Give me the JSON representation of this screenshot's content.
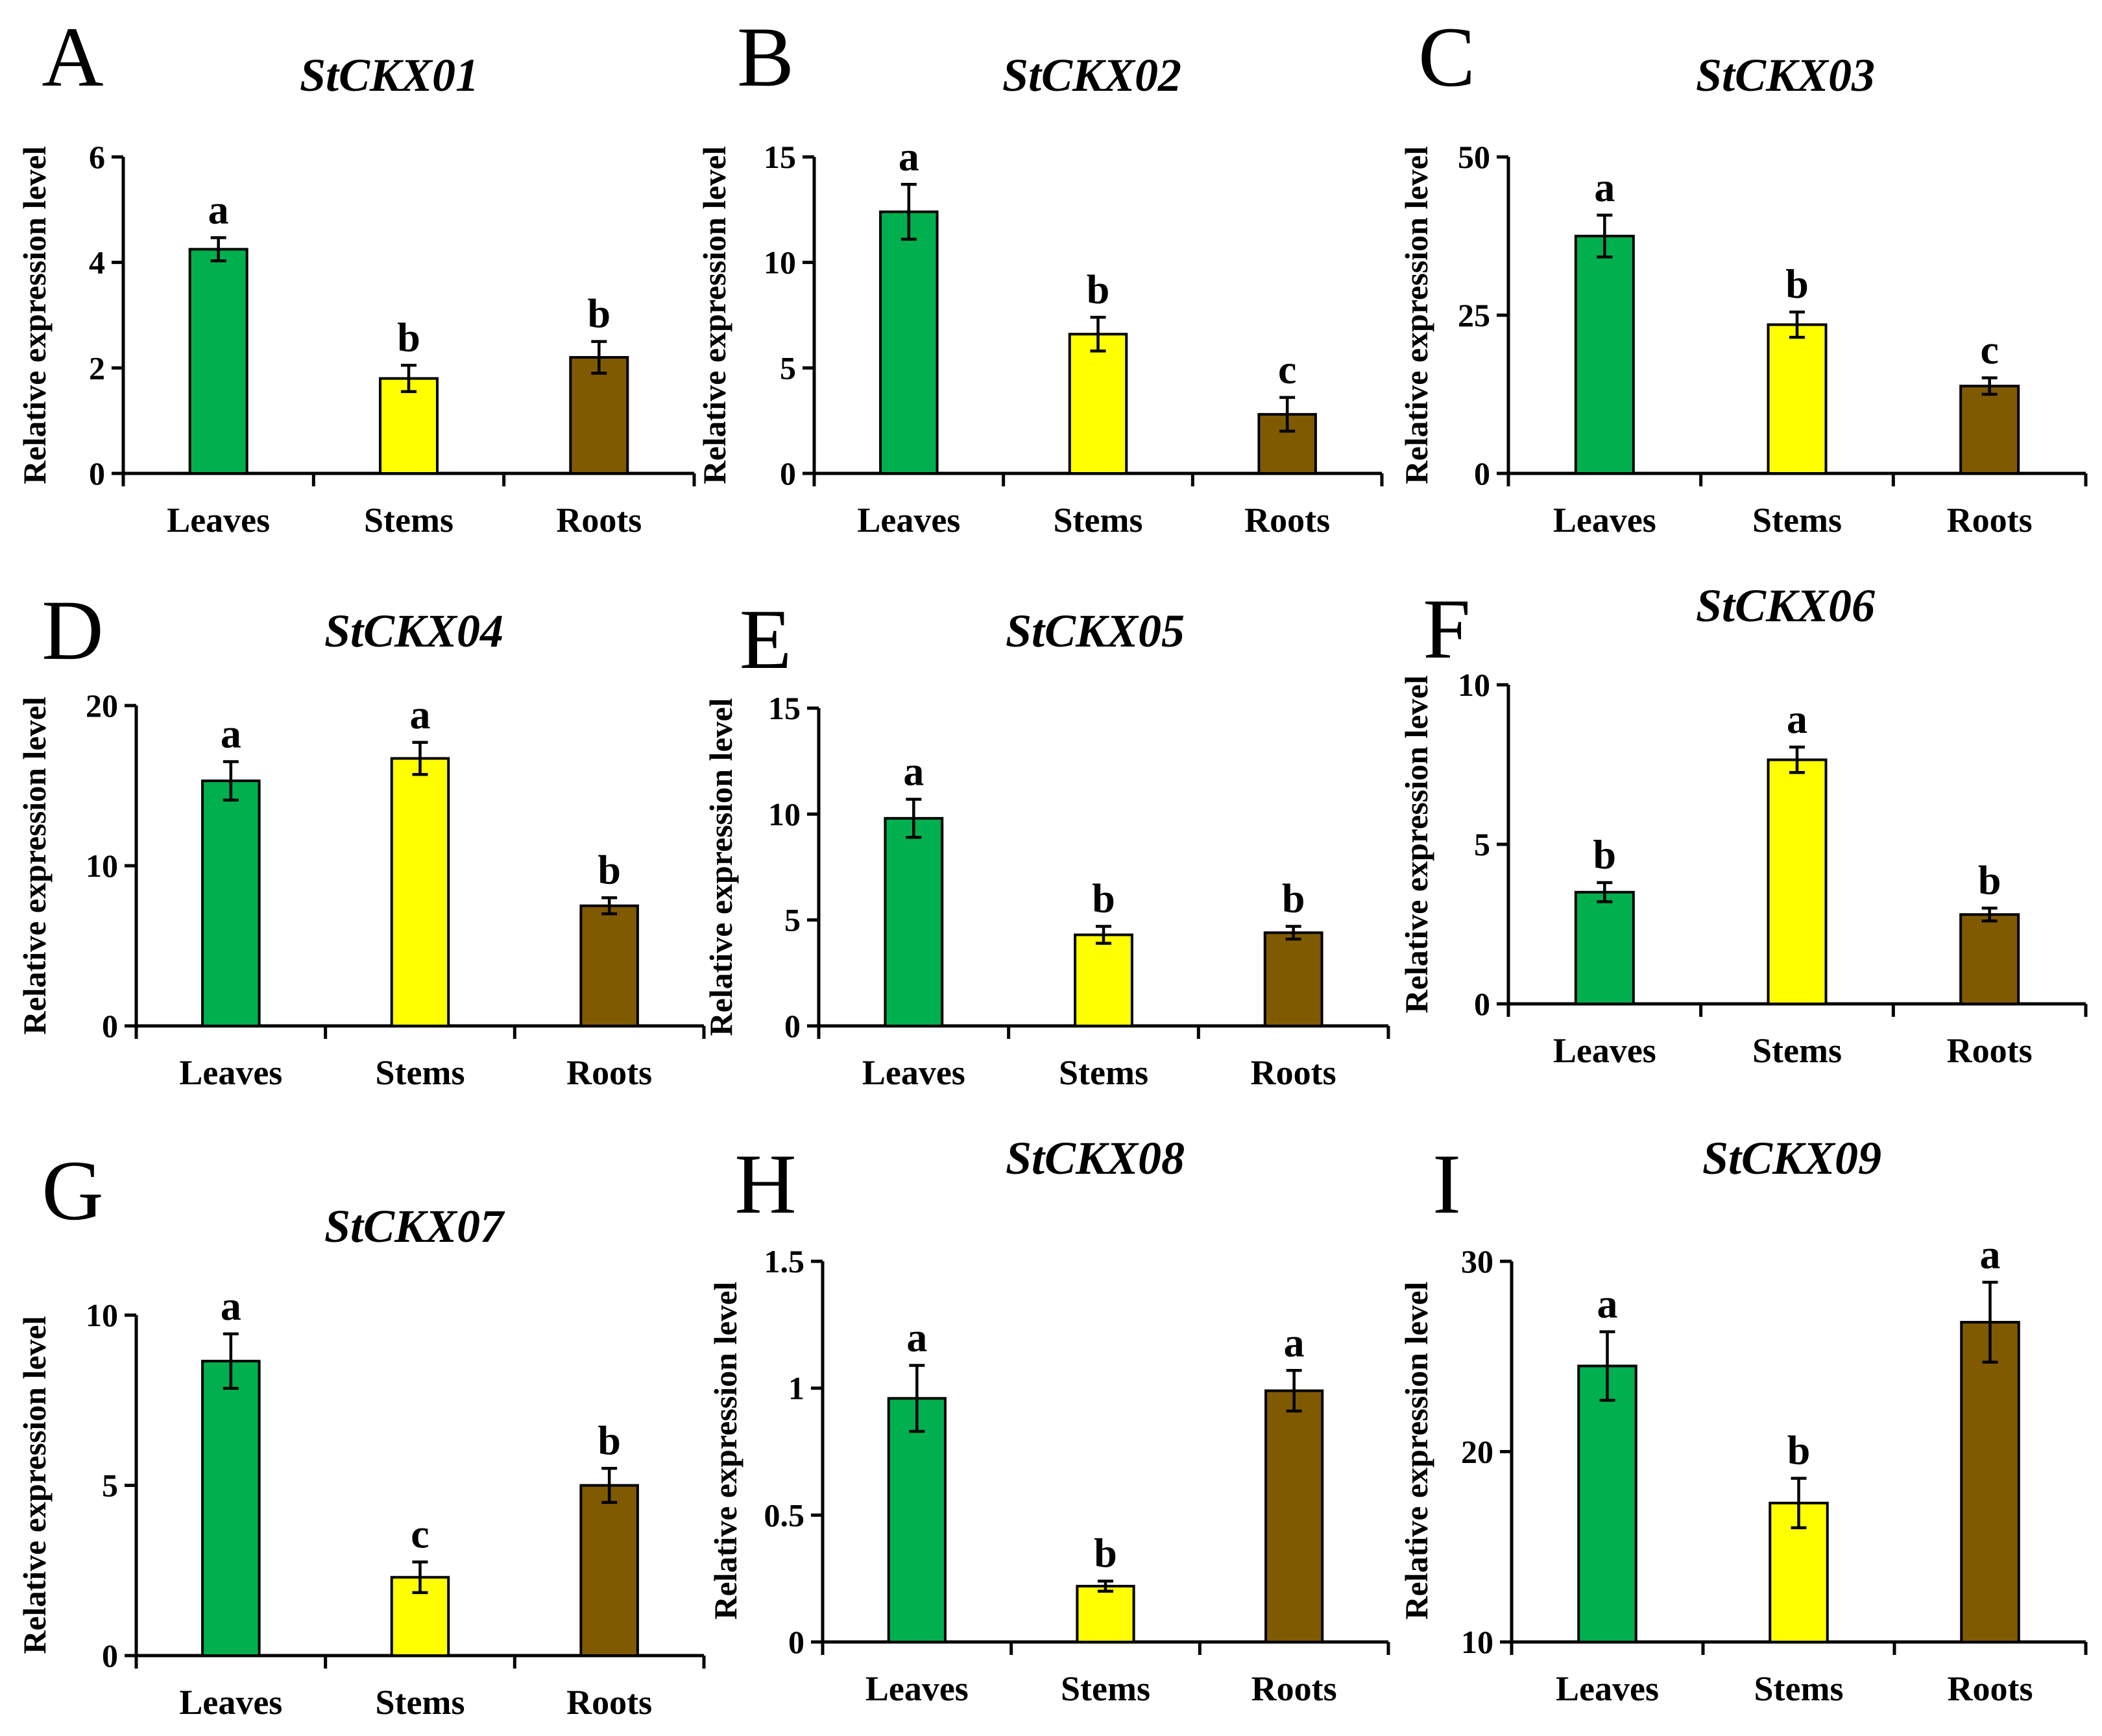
{
  "chart_data": [
    {
      "panel": "A",
      "type": "bar",
      "title": "StCKX01",
      "xlabel": "",
      "ylabel": "Relative expression level",
      "categories": [
        "Leaves",
        "Stems",
        "Roots"
      ],
      "values": [
        4.25,
        1.8,
        2.2
      ],
      "errors": [
        0.22,
        0.25,
        0.3
      ],
      "significance": [
        "a",
        "b",
        "b"
      ],
      "ylim": [
        0,
        6
      ],
      "yticks": [
        0,
        2,
        4,
        6
      ],
      "ytick_labels": [
        "0",
        "2",
        "4",
        "6"
      ],
      "colors": [
        "#00B04F",
        "#FFFF00",
        "#7F5A00"
      ],
      "grid": false
    },
    {
      "panel": "B",
      "type": "bar",
      "title": "StCKX02",
      "xlabel": "",
      "ylabel": "Relative expression level",
      "categories": [
        "Leaves",
        "Stems",
        "Roots"
      ],
      "values": [
        12.4,
        6.6,
        2.8
      ],
      "errors": [
        1.3,
        0.8,
        0.8
      ],
      "significance": [
        "a",
        "b",
        "c"
      ],
      "ylim": [
        0,
        15
      ],
      "yticks": [
        0,
        5,
        10,
        15
      ],
      "ytick_labels": [
        "0",
        "5",
        "10",
        "15"
      ],
      "colors": [
        "#00B04F",
        "#FFFF00",
        "#7F5A00"
      ],
      "grid": false
    },
    {
      "panel": "C",
      "type": "bar",
      "title": "StCKX03",
      "xlabel": "",
      "ylabel": "Relative expression level",
      "categories": [
        "Leaves",
        "Stems",
        "Roots"
      ],
      "values": [
        37.5,
        23.5,
        13.8
      ],
      "errors": [
        3.3,
        2.0,
        1.3
      ],
      "significance": [
        "a",
        "b",
        "c"
      ],
      "ylim": [
        0,
        50
      ],
      "yticks": [
        0,
        25,
        50
      ],
      "ytick_labels": [
        "0",
        "25",
        "50"
      ],
      "colors": [
        "#00B04F",
        "#FFFF00",
        "#7F5A00"
      ],
      "grid": false
    },
    {
      "panel": "D",
      "type": "bar",
      "title": "StCKX04",
      "xlabel": "",
      "ylabel": "Relative expression level",
      "categories": [
        "Leaves",
        "Stems",
        "Roots"
      ],
      "values": [
        15.3,
        16.7,
        7.5
      ],
      "errors": [
        1.2,
        1.0,
        0.5
      ],
      "significance": [
        "a",
        "a",
        "b"
      ],
      "ylim": [
        0,
        20
      ],
      "yticks": [
        0,
        10,
        20
      ],
      "ytick_labels": [
        "0",
        "10",
        "20"
      ],
      "colors": [
        "#00B04F",
        "#FFFF00",
        "#7F5A00"
      ],
      "grid": false
    },
    {
      "panel": "E",
      "type": "bar",
      "title": "StCKX05",
      "xlabel": "",
      "ylabel": "Relative expression level",
      "categories": [
        "Leaves",
        "Stems",
        "Roots"
      ],
      "values": [
        9.8,
        4.3,
        4.4
      ],
      "errors": [
        0.9,
        0.4,
        0.3
      ],
      "significance": [
        "a",
        "b",
        "b"
      ],
      "ylim": [
        0,
        15
      ],
      "yticks": [
        0,
        5,
        10,
        15
      ],
      "ytick_labels": [
        "0",
        "5",
        "10",
        "15"
      ],
      "colors": [
        "#00B04F",
        "#FFFF00",
        "#7F5A00"
      ],
      "grid": false
    },
    {
      "panel": "F",
      "type": "bar",
      "title": "StCKX06",
      "xlabel": "",
      "ylabel": "Relative expression level",
      "categories": [
        "Leaves",
        "Stems",
        "Roots"
      ],
      "values": [
        3.5,
        7.65,
        2.8
      ],
      "errors": [
        0.3,
        0.4,
        0.2
      ],
      "significance": [
        "b",
        "a",
        "b"
      ],
      "ylim": [
        0,
        10
      ],
      "yticks": [
        0,
        5,
        10
      ],
      "ytick_labels": [
        "0",
        "5",
        "10"
      ],
      "colors": [
        "#00B04F",
        "#FFFF00",
        "#7F5A00"
      ],
      "grid": false
    },
    {
      "panel": "G",
      "type": "bar",
      "title": "StCKX07",
      "xlabel": "",
      "ylabel": "Relative expression level",
      "categories": [
        "Leaves",
        "Stems",
        "Roots"
      ],
      "values": [
        8.65,
        2.3,
        5.0
      ],
      "errors": [
        0.8,
        0.45,
        0.5
      ],
      "significance": [
        "a",
        "c",
        "b"
      ],
      "ylim": [
        0,
        10
      ],
      "yticks": [
        0,
        5,
        10
      ],
      "ytick_labels": [
        "0",
        "5",
        "10"
      ],
      "colors": [
        "#00B04F",
        "#FFFF00",
        "#7F5A00"
      ],
      "grid": false
    },
    {
      "panel": "H",
      "type": "bar",
      "title": "StCKX08",
      "xlabel": "",
      "ylabel": "Relative expression level",
      "categories": [
        "Leaves",
        "Stems",
        "Roots"
      ],
      "values": [
        0.96,
        0.22,
        0.99
      ],
      "errors": [
        0.13,
        0.02,
        0.08
      ],
      "significance": [
        "a",
        "b",
        "a"
      ],
      "ylim": [
        0,
        1.5
      ],
      "yticks": [
        0,
        0.5,
        1,
        1.5
      ],
      "ytick_labels": [
        "0",
        "0.5",
        "1",
        "1.5"
      ],
      "colors": [
        "#00B04F",
        "#FFFF00",
        "#7F5A00"
      ],
      "grid": false
    },
    {
      "panel": "I",
      "type": "bar",
      "title": "StCKX09",
      "xlabel": "",
      "ylabel": "Relative expression level",
      "categories": [
        "Leaves",
        "Stems",
        "Roots"
      ],
      "values": [
        24.5,
        17.3,
        26.8
      ],
      "errors": [
        1.8,
        1.3,
        2.1
      ],
      "significance": [
        "a",
        "b",
        "a"
      ],
      "ylim": [
        10,
        30
      ],
      "yticks": [
        10,
        20,
        30
      ],
      "ytick_labels": [
        "10",
        "20",
        "30"
      ],
      "colors": [
        "#00B04F",
        "#FFFF00",
        "#7F5A00"
      ],
      "grid": false
    }
  ]
}
